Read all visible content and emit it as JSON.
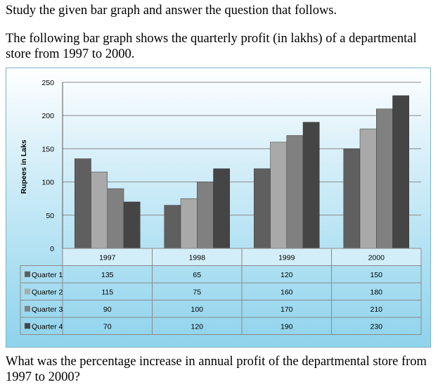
{
  "question": {
    "intro": "Study the given bar graph and answer the question that follows.",
    "description": "The following bar graph shows the quarterly profit (in lakhs) of a departmental store from 1997 to 2000.",
    "prompt": "What was the percentage increase in annual profit of the departmental store from 1997 to 2000?"
  },
  "chart_data": {
    "type": "bar",
    "title": "",
    "xlabel": "",
    "ylabel": "Rupees in Laks",
    "categories": [
      "1997",
      "1998",
      "1999",
      "2000"
    ],
    "ylim": [
      0,
      250
    ],
    "yticks": [
      0,
      50,
      100,
      150,
      200,
      250
    ],
    "grid": true,
    "legend": "data-table",
    "series": [
      {
        "name": "Quarter 1",
        "values": [
          135,
          65,
          120,
          150
        ],
        "color": "#5f5f5f"
      },
      {
        "name": "Quarter 2",
        "values": [
          115,
          75,
          160,
          180
        ],
        "color": "#a9a9a9"
      },
      {
        "name": "Quarter 3",
        "values": [
          90,
          100,
          170,
          210
        ],
        "color": "#808080"
      },
      {
        "name": "Quarter 4",
        "values": [
          70,
          120,
          190,
          230
        ],
        "color": "#454545"
      }
    ]
  }
}
